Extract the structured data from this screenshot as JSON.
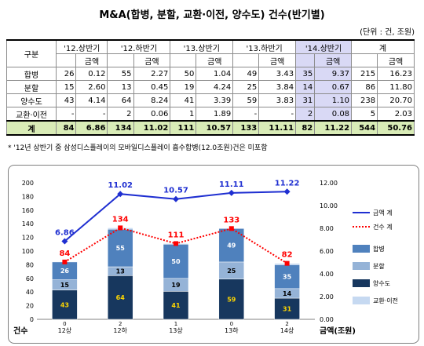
{
  "title": "M&A(합병, 분할, 교환·이전, 양수도) 건수(반기별)",
  "unit": "(단위 : 건, 조원)",
  "table": {
    "corner": "구분",
    "periods": [
      "'12.상반기",
      "'12.하반기",
      "'13.상반기",
      "'13.하반기",
      "'14.상반기",
      "계"
    ],
    "sub_label": "금액",
    "rows": [
      {
        "label": "합병",
        "cells": [
          "26",
          "0.12",
          "55",
          "2.27",
          "50",
          "1.04",
          "49",
          "3.43",
          "35",
          "9.37",
          "215",
          "16.23"
        ]
      },
      {
        "label": "분할",
        "cells": [
          "15",
          "2.60",
          "13",
          "0.45",
          "19",
          "4.24",
          "25",
          "3.84",
          "14",
          "0.67",
          "86",
          "11.80"
        ]
      },
      {
        "label": "양수도",
        "cells": [
          "43",
          "4.14",
          "64",
          "8.24",
          "41",
          "3.39",
          "59",
          "3.83",
          "31",
          "1.10",
          "238",
          "20.70"
        ]
      },
      {
        "label": "교환·이전",
        "cells": [
          "-",
          "-",
          "2",
          "0.06",
          "1",
          "1.89",
          "-",
          "-",
          "2",
          "0.08",
          "5",
          "2.03"
        ]
      }
    ],
    "total": {
      "label": "계",
      "cells": [
        "84",
        "6.86",
        "134",
        "11.02",
        "111",
        "10.57",
        "133",
        "11.11",
        "82",
        "11.22",
        "544",
        "50.76"
      ]
    }
  },
  "note": "* '12년 상반기 중 삼성디스플레이의 모바일디스플레이 흡수합병(12.0조원)건은 미포함",
  "chart_data": {
    "type": "bar",
    "categories": [
      "12상",
      "12하",
      "13상",
      "13하",
      "14상"
    ],
    "series": [
      {
        "name": "양수도",
        "values": [
          43,
          64,
          41,
          59,
          31
        ],
        "color": "#17375e"
      },
      {
        "name": "분할",
        "values": [
          15,
          13,
          19,
          25,
          14
        ],
        "color": "#95b3d7"
      },
      {
        "name": "합병",
        "values": [
          26,
          55,
          50,
          49,
          35
        ],
        "color": "#4f81bd"
      },
      {
        "name": "교환·이전",
        "values": [
          0,
          2,
          1,
          0,
          2
        ],
        "color": "#c6d9f1"
      }
    ],
    "lines": [
      {
        "name": "금액 계",
        "values": [
          6.86,
          11.02,
          10.57,
          11.11,
          11.22
        ],
        "color": "#1f2fd1",
        "axis": "right"
      },
      {
        "name": "건수 계",
        "values": [
          84,
          134,
          111,
          133,
          82
        ],
        "color": "#ff0000",
        "axis": "left"
      }
    ],
    "ylabel_left": "건수",
    "ylabel_right": "금액(조원)",
    "ylim_left": [
      0,
      200
    ],
    "yticks_left": [
      0,
      20,
      40,
      60,
      80,
      100,
      120,
      140,
      160,
      180,
      200
    ],
    "ylim_right": [
      0,
      12
    ],
    "yticks_right": [
      "0.00",
      "2.00",
      "4.00",
      "6.00",
      "8.00",
      "10.00",
      "12.00"
    ],
    "legend_lines": [
      "금액 계",
      "건수 계"
    ],
    "legend_bars": [
      "합병",
      "분할",
      "양수도",
      "교환·이전"
    ],
    "legend_position": "right"
  }
}
